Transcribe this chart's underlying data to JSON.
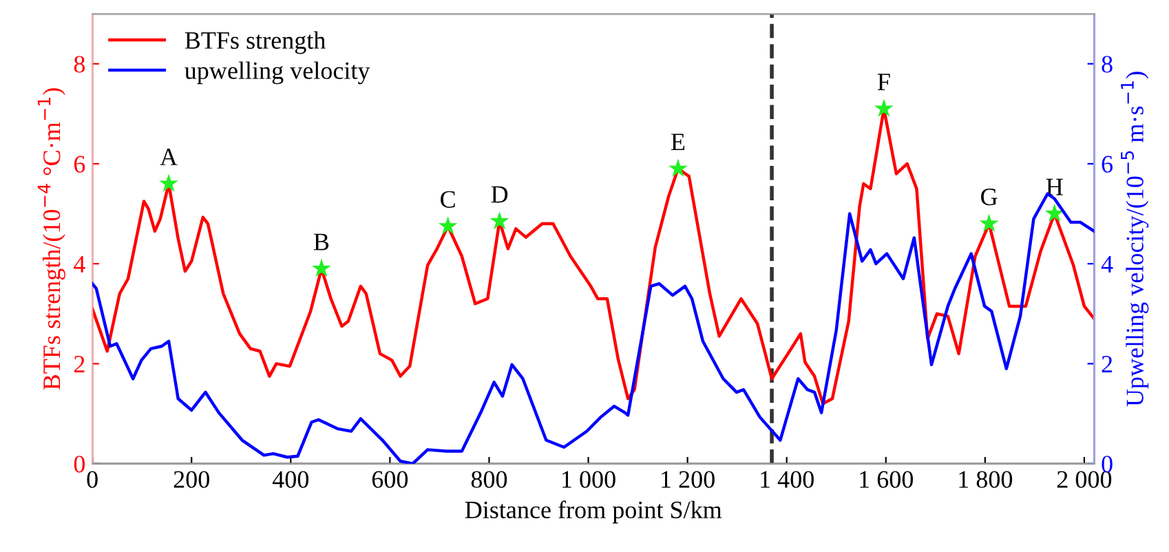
{
  "chart_data": {
    "type": "line",
    "xlabel": "Distance from point S/km",
    "ylabel": "BTFs strength/(10$^{−4}$ °C·m$^{−1}$)",
    "y2label": "Upwelling velocity/(10$^{−5}$ m·s$^{−1}$)",
    "xlim": [
      0,
      2020
    ],
    "xticks": [
      0,
      200,
      400,
      600,
      800,
      {
        "value": 1000,
        "label": "1 000"
      },
      {
        "value": 1200,
        "label": "1 200"
      },
      {
        "value": 1400,
        "label": "1 400"
      },
      {
        "value": 1600,
        "label": "1 600"
      },
      {
        "value": 1800,
        "label": "1 800"
      },
      {
        "value": 2000,
        "label": "2 000"
      }
    ],
    "ylim": [
      0,
      9
    ],
    "yticks": [
      0,
      2,
      4,
      6,
      8
    ],
    "y2lim": [
      0,
      9
    ],
    "y2ticks": [
      0,
      2,
      4,
      6,
      8
    ],
    "legend": "top left",
    "grid": false,
    "ref_lines": [
      {
        "axis": "x",
        "value": 1370,
        "color": "#333333",
        "line_style": "dashed"
      }
    ],
    "series": [
      {
        "name": "BTFs strength",
        "color": "#ff0000",
        "x": [
          0,
          30,
          55,
          72,
          104,
          113,
          126,
          137,
          154,
          173,
          187,
          200,
          223,
          233,
          264,
          297,
          319,
          338,
          357,
          371,
          398,
          440,
          462,
          481,
          503,
          516,
          541,
          552,
          580,
          604,
          621,
          640,
          676,
          695,
          717,
          745,
          772,
          797,
          821,
          838,
          854,
          874,
          907,
          929,
          964,
          1005,
          1019,
          1038,
          1060,
          1080,
          1093,
          1135,
          1162,
          1181,
          1203,
          1245,
          1264,
          1308,
          1341,
          1370,
          1409,
          1428,
          1437,
          1456,
          1473,
          1492,
          1525,
          1547,
          1555,
          1569,
          1596,
          1621,
          1643,
          1662,
          1684,
          1703,
          1725,
          1747,
          1780,
          1808,
          1849,
          1882,
          1912,
          1940,
          1978,
          2000,
          2020
        ],
        "values": [
          3.1,
          2.25,
          3.4,
          3.7,
          5.25,
          5.1,
          4.65,
          4.9,
          5.6,
          4.5,
          3.85,
          4.05,
          4.93,
          4.8,
          3.4,
          2.6,
          2.3,
          2.25,
          1.75,
          2.0,
          1.95,
          3.05,
          3.9,
          3.3,
          2.75,
          2.85,
          3.55,
          3.4,
          2.2,
          2.07,
          1.75,
          1.95,
          3.97,
          4.3,
          4.75,
          4.15,
          3.2,
          3.3,
          4.85,
          4.3,
          4.7,
          4.53,
          4.8,
          4.8,
          4.15,
          3.55,
          3.3,
          3.3,
          2.1,
          1.3,
          1.48,
          4.33,
          5.35,
          5.9,
          5.75,
          3.4,
          2.55,
          3.3,
          2.8,
          1.7,
          2.3,
          2.6,
          2.03,
          1.75,
          1.2,
          1.3,
          2.85,
          5.15,
          5.6,
          5.5,
          7.1,
          5.8,
          6.0,
          5.5,
          2.5,
          3.0,
          2.95,
          2.2,
          4.15,
          4.8,
          3.15,
          3.15,
          4.25,
          5.0,
          3.97,
          3.15,
          2.9
        ]
      },
      {
        "name": "upwelling velocity",
        "color": "#0000ff",
        "axis": "y2",
        "x": [
          0,
          8,
          36,
          49,
          82,
          99,
          118,
          140,
          154,
          173,
          200,
          228,
          255,
          302,
          346,
          365,
          393,
          414,
          442,
          456,
          494,
          522,
          541,
          585,
          621,
          646,
          676,
          714,
          745,
          783,
          810,
          827,
          846,
          868,
          915,
          951,
          997,
          1025,
          1052,
          1074,
          1080,
          1107,
          1126,
          1143,
          1170,
          1195,
          1209,
          1231,
          1272,
          1299,
          1313,
          1346,
          1387,
          1423,
          1442,
          1456,
          1470,
          1500,
          1527,
          1552,
          1569,
          1580,
          1602,
          1635,
          1657,
          1692,
          1725,
          1739,
          1772,
          1799,
          1813,
          1843,
          1871,
          1898,
          1926,
          1940,
          1973,
          1992,
          2020
        ],
        "values": [
          3.6,
          3.5,
          2.35,
          2.4,
          1.7,
          2.07,
          2.3,
          2.35,
          2.45,
          1.3,
          1.07,
          1.43,
          1.02,
          0.47,
          0.17,
          0.2,
          0.13,
          0.15,
          0.83,
          0.88,
          0.7,
          0.65,
          0.9,
          0.47,
          0.05,
          0.0,
          0.28,
          0.25,
          0.25,
          1.02,
          1.63,
          1.35,
          1.98,
          1.7,
          0.47,
          0.33,
          0.65,
          0.93,
          1.15,
          1.02,
          0.97,
          2.48,
          3.55,
          3.6,
          3.37,
          3.55,
          3.3,
          2.45,
          1.7,
          1.43,
          1.48,
          0.93,
          0.47,
          1.7,
          1.48,
          1.43,
          1.02,
          2.67,
          5.0,
          4.05,
          4.28,
          4.0,
          4.2,
          3.7,
          4.52,
          1.98,
          3.15,
          3.5,
          4.2,
          3.15,
          3.05,
          1.9,
          2.95,
          4.9,
          5.4,
          5.3,
          4.83,
          4.83,
          4.65
        ]
      },
      {
        "type": "scatter",
        "color": "#22ee22",
        "marker": "star",
        "x": [
          154,
          462,
          717,
          821,
          1181,
          1596,
          1808,
          1940
        ],
        "values": [
          5.6,
          3.9,
          4.75,
          4.85,
          5.9,
          7.1,
          4.8,
          5.0
        ],
        "value_labels": [
          "A",
          "B",
          "C",
          "D",
          "E",
          "F",
          "G",
          "H"
        ]
      }
    ]
  }
}
